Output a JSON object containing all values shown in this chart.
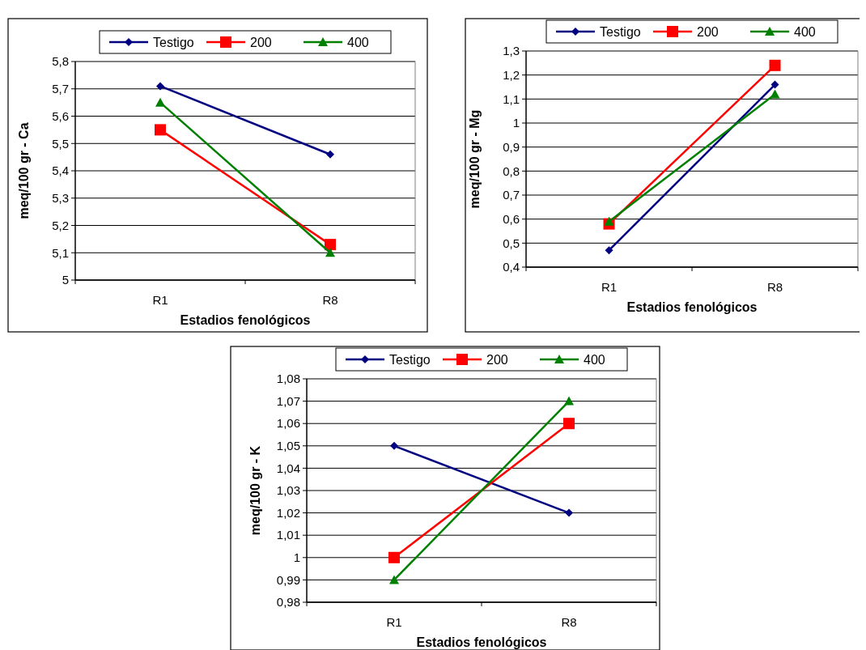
{
  "chart_data": [
    {
      "type": "line",
      "xlabel": "Estadios fenológicos",
      "ylabel": "meq/100 gr - Ca",
      "categories": [
        "R1",
        "R8"
      ],
      "ylim": [
        5,
        5.8
      ],
      "yticks": [
        {
          "value": 5,
          "label": "5"
        },
        {
          "value": 5.1,
          "label": "5,1"
        },
        {
          "value": 5.2,
          "label": "5,2"
        },
        {
          "value": 5.3,
          "label": "5,3"
        },
        {
          "value": 5.4,
          "label": "5,4"
        },
        {
          "value": 5.5,
          "label": "5,5"
        },
        {
          "value": 5.6,
          "label": "5,6"
        },
        {
          "value": 5.7,
          "label": "5,7"
        },
        {
          "value": 5.8,
          "label": "5,8"
        }
      ],
      "grid": "y",
      "legend": "top",
      "series": [
        {
          "name": "Testigo",
          "color": "#000080",
          "marker": "diamond",
          "values": [
            5.71,
            5.46
          ]
        },
        {
          "name": "200",
          "color": "#ff0000",
          "marker": "square",
          "values": [
            5.55,
            5.13
          ]
        },
        {
          "name": "400",
          "color": "#008000",
          "marker": "triangle",
          "values": [
            5.65,
            5.1
          ]
        }
      ]
    },
    {
      "type": "line",
      "xlabel": "Estadios fenológicos",
      "ylabel": "meq/100 gr - Mg",
      "categories": [
        "R1",
        "R8"
      ],
      "ylim": [
        0.4,
        1.3
      ],
      "yticks": [
        {
          "value": 0.4,
          "label": "0,4"
        },
        {
          "value": 0.5,
          "label": "0,5"
        },
        {
          "value": 0.6,
          "label": "0,6"
        },
        {
          "value": 0.7,
          "label": "0,7"
        },
        {
          "value": 0.8,
          "label": "0,8"
        },
        {
          "value": 0.9,
          "label": "0,9"
        },
        {
          "value": 1,
          "label": "1"
        },
        {
          "value": 1.1,
          "label": "1,1"
        },
        {
          "value": 1.2,
          "label": "1,2"
        },
        {
          "value": 1.3,
          "label": "1,3"
        }
      ],
      "grid": "y",
      "legend": "top",
      "series": [
        {
          "name": "Testigo",
          "color": "#000080",
          "marker": "diamond",
          "values": [
            0.47,
            1.16
          ]
        },
        {
          "name": "200",
          "color": "#ff0000",
          "marker": "square",
          "values": [
            0.58,
            1.24
          ]
        },
        {
          "name": "400",
          "color": "#008000",
          "marker": "triangle",
          "values": [
            0.59,
            1.12
          ]
        }
      ]
    },
    {
      "type": "line",
      "xlabel": "Estadios fenológicos",
      "ylabel": "meq/100 gr - K",
      "categories": [
        "R1",
        "R8"
      ],
      "ylim": [
        0.98,
        1.08
      ],
      "yticks": [
        {
          "value": 0.98,
          "label": "0,98"
        },
        {
          "value": 0.99,
          "label": "0,99"
        },
        {
          "value": 1,
          "label": "1"
        },
        {
          "value": 1.01,
          "label": "1,01"
        },
        {
          "value": 1.02,
          "label": "1,02"
        },
        {
          "value": 1.03,
          "label": "1,03"
        },
        {
          "value": 1.04,
          "label": "1,04"
        },
        {
          "value": 1.05,
          "label": "1,05"
        },
        {
          "value": 1.06,
          "label": "1,06"
        },
        {
          "value": 1.07,
          "label": "1,07"
        },
        {
          "value": 1.08,
          "label": "1,08"
        }
      ],
      "grid": "y",
      "legend": "top",
      "series": [
        {
          "name": "Testigo",
          "color": "#000080",
          "marker": "diamond",
          "values": [
            1.05,
            1.02
          ]
        },
        {
          "name": "200",
          "color": "#ff0000",
          "marker": "square",
          "values": [
            1.0,
            1.06
          ]
        },
        {
          "name": "400",
          "color": "#008000",
          "marker": "triangle",
          "values": [
            0.99,
            1.07
          ]
        }
      ]
    }
  ]
}
